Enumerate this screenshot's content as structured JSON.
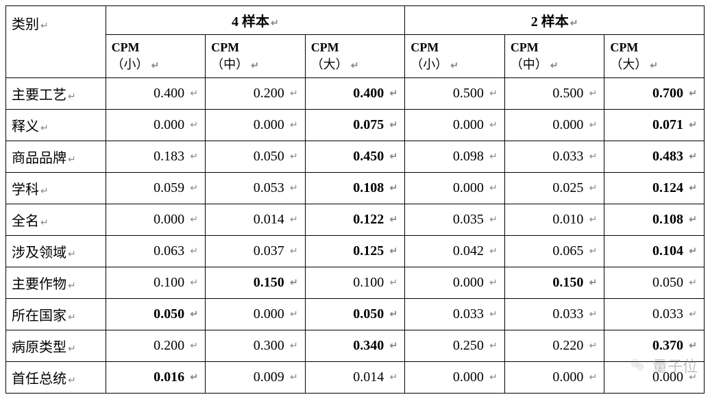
{
  "table": {
    "category_label": "类别",
    "groups": [
      {
        "label": "4 样本"
      },
      {
        "label": "2 样本"
      }
    ],
    "sub_columns": [
      {
        "title": "CPM",
        "size": "（小）"
      },
      {
        "title": "CPM",
        "size": "（中）"
      },
      {
        "title": "CPM",
        "size": "（大）"
      },
      {
        "title": "CPM",
        "size": "（小）"
      },
      {
        "title": "CPM",
        "size": "（中）"
      },
      {
        "title": "CPM",
        "size": "（大）"
      }
    ],
    "rows": [
      {
        "label": "主要工艺",
        "cells": [
          {
            "value": "0.400",
            "bold": false
          },
          {
            "value": "0.200",
            "bold": false
          },
          {
            "value": "0.400",
            "bold": true
          },
          {
            "value": "0.500",
            "bold": false
          },
          {
            "value": "0.500",
            "bold": false
          },
          {
            "value": "0.700",
            "bold": true
          }
        ]
      },
      {
        "label": "释义",
        "cells": [
          {
            "value": "0.000",
            "bold": false
          },
          {
            "value": "0.000",
            "bold": false
          },
          {
            "value": "0.075",
            "bold": true
          },
          {
            "value": "0.000",
            "bold": false
          },
          {
            "value": "0.000",
            "bold": false
          },
          {
            "value": "0.071",
            "bold": true
          }
        ]
      },
      {
        "label": "商品品牌",
        "cells": [
          {
            "value": "0.183",
            "bold": false
          },
          {
            "value": "0.050",
            "bold": false
          },
          {
            "value": "0.450",
            "bold": true
          },
          {
            "value": "0.098",
            "bold": false
          },
          {
            "value": "0.033",
            "bold": false
          },
          {
            "value": "0.483",
            "bold": true
          }
        ]
      },
      {
        "label": "学科",
        "cells": [
          {
            "value": "0.059",
            "bold": false
          },
          {
            "value": "0.053",
            "bold": false
          },
          {
            "value": "0.108",
            "bold": true
          },
          {
            "value": "0.000",
            "bold": false
          },
          {
            "value": "0.025",
            "bold": false
          },
          {
            "value": "0.124",
            "bold": true
          }
        ]
      },
      {
        "label": "全名",
        "cells": [
          {
            "value": "0.000",
            "bold": false
          },
          {
            "value": "0.014",
            "bold": false
          },
          {
            "value": "0.122",
            "bold": true
          },
          {
            "value": "0.035",
            "bold": false
          },
          {
            "value": "0.010",
            "bold": false
          },
          {
            "value": "0.108",
            "bold": true
          }
        ]
      },
      {
        "label": "涉及领域",
        "cells": [
          {
            "value": "0.063",
            "bold": false
          },
          {
            "value": "0.037",
            "bold": false
          },
          {
            "value": "0.125",
            "bold": true
          },
          {
            "value": "0.042",
            "bold": false
          },
          {
            "value": "0.065",
            "bold": false
          },
          {
            "value": "0.104",
            "bold": true
          }
        ]
      },
      {
        "label": "主要作物",
        "cells": [
          {
            "value": "0.100",
            "bold": false
          },
          {
            "value": "0.150",
            "bold": true
          },
          {
            "value": "0.100",
            "bold": false
          },
          {
            "value": "0.000",
            "bold": false
          },
          {
            "value": "0.150",
            "bold": true
          },
          {
            "value": "0.050",
            "bold": false
          }
        ]
      },
      {
        "label": "所在国家",
        "cells": [
          {
            "value": "0.050",
            "bold": true
          },
          {
            "value": "0.000",
            "bold": false
          },
          {
            "value": "0.050",
            "bold": true
          },
          {
            "value": "0.033",
            "bold": false
          },
          {
            "value": "0.033",
            "bold": false
          },
          {
            "value": "0.033",
            "bold": false
          }
        ]
      },
      {
        "label": "病原类型",
        "cells": [
          {
            "value": "0.200",
            "bold": false
          },
          {
            "value": "0.300",
            "bold": false
          },
          {
            "value": "0.340",
            "bold": true
          },
          {
            "value": "0.250",
            "bold": false
          },
          {
            "value": "0.220",
            "bold": false
          },
          {
            "value": "0.370",
            "bold": true
          }
        ]
      },
      {
        "label": "首任总统",
        "cells": [
          {
            "value": "0.016",
            "bold": true
          },
          {
            "value": "0.009",
            "bold": false
          },
          {
            "value": "0.014",
            "bold": false
          },
          {
            "value": "0.000",
            "bold": false
          },
          {
            "value": "0.000",
            "bold": false
          },
          {
            "value": "0.000",
            "bold": false
          }
        ]
      }
    ],
    "return_glyph": "↵",
    "column_widths": [
      "14.3%",
      "14.3%",
      "14.3%",
      "14.3%",
      "14.3%",
      "14.3%",
      "14.3%"
    ],
    "colors": {
      "border": "#000000",
      "text": "#000000",
      "background": "#ffffff",
      "return_mark": "#888888",
      "watermark": "rgba(120,120,120,0.45)"
    },
    "fontsize": {
      "header": 20,
      "sub_header": 18,
      "cell": 20,
      "label": 20
    }
  },
  "watermark": {
    "text": "量子位"
  }
}
